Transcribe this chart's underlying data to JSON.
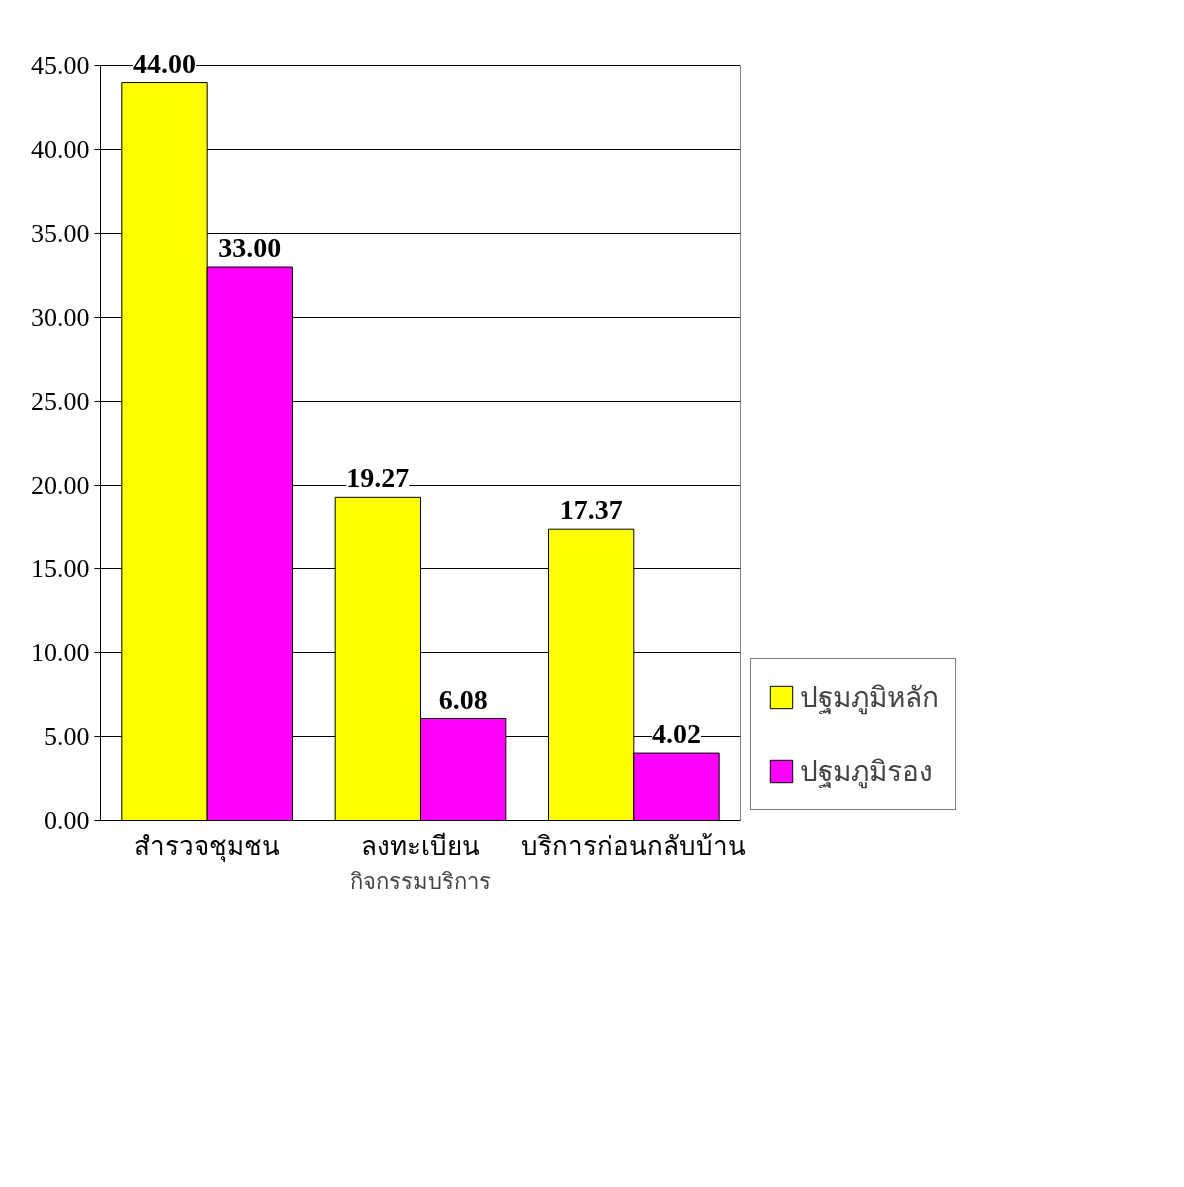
{
  "chart_data": {
    "type": "bar",
    "xlabel": "กิจกรรมบริการ",
    "categories": [
      "สำรวจชุมชน",
      "ลงทะเบียน",
      "บริการก่อนกลับบ้าน"
    ],
    "series": [
      {
        "name": "ปฐมภูมิหลัก",
        "color": "#ffff00",
        "values": [
          44,
          19.27,
          17.37
        ],
        "value_labels": [
          "44.00",
          "19.27",
          "17.37"
        ]
      },
      {
        "name": "ปฐมภูมิรอง",
        "color": "#ff00ff",
        "values": [
          33,
          6.08,
          4.02
        ],
        "value_labels": [
          "33.00",
          "6.08",
          "4.02"
        ]
      }
    ],
    "ylim": [
      0,
      45
    ],
    "yticks": [
      {
        "value": 0,
        "label": "0.00"
      },
      {
        "value": 5,
        "label": "5.00"
      },
      {
        "value": 10,
        "label": "10.00"
      },
      {
        "value": 15,
        "label": "15.00"
      },
      {
        "value": 20,
        "label": "20.00"
      },
      {
        "value": 25,
        "label": "25.00"
      },
      {
        "value": 30,
        "label": "30.00"
      },
      {
        "value": 35,
        "label": "35.00"
      },
      {
        "value": 40,
        "label": "40.00"
      },
      {
        "value": 45,
        "label": "45.00"
      }
    ],
    "grid": "y",
    "legend": "bottom right"
  }
}
